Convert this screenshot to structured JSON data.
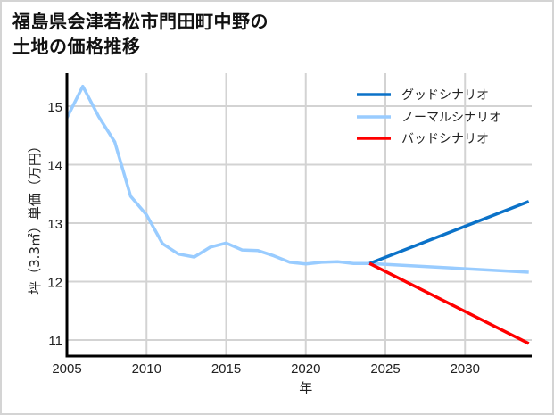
{
  "title_line1": "福島県会津若松市門田町中野の",
  "title_line2": "土地の価格推移",
  "chart_data": {
    "type": "line",
    "title": "福島県会津若松市門田町中野の土地の価格推移",
    "xlabel": "年",
    "ylabel": "坪（3.3㎡）単価（万円）",
    "xlim": [
      2005,
      2034
    ],
    "ylim": [
      10.7,
      15.6
    ],
    "xticks": [
      2005,
      2010,
      2015,
      2020,
      2025,
      2030
    ],
    "yticks": [
      11,
      12,
      13,
      14,
      15
    ],
    "grid": true,
    "legend_position": "upper right",
    "series": [
      {
        "name": "グッドシナリオ",
        "color": "#0b72c8",
        "x": [
          2024,
          2034
        ],
        "values": [
          12.31,
          13.37
        ]
      },
      {
        "name": "ノーマルシナリオ",
        "color": "#99ccff",
        "x": [
          2005,
          2006,
          2007,
          2008,
          2009,
          2010,
          2011,
          2012,
          2013,
          2014,
          2015,
          2016,
          2017,
          2018,
          2019,
          2020,
          2021,
          2022,
          2023,
          2024,
          2034
        ],
        "values": [
          14.8,
          15.34,
          14.82,
          14.39,
          13.46,
          13.14,
          12.65,
          12.47,
          12.42,
          12.59,
          12.66,
          12.54,
          12.53,
          12.44,
          12.33,
          12.3,
          12.33,
          12.34,
          12.31,
          12.31,
          12.16
        ]
      },
      {
        "name": "バッドシナリオ",
        "color": "#ff0000",
        "x": [
          2024,
          2034
        ],
        "values": [
          12.31,
          10.94
        ]
      }
    ]
  }
}
